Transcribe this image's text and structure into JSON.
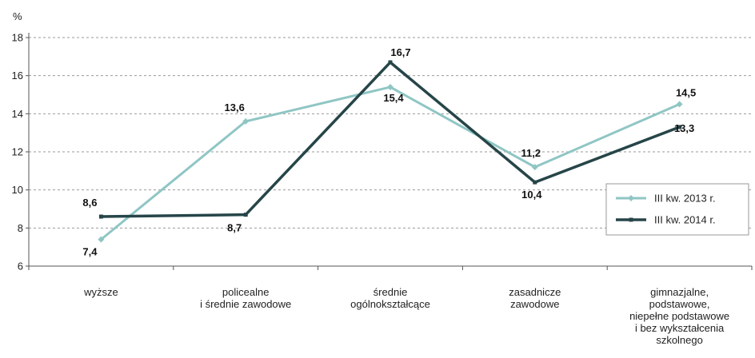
{
  "chart_data": {
    "type": "line",
    "ylabel": "%",
    "ylim": [
      6,
      18
    ],
    "yticks": [
      6,
      8,
      10,
      12,
      14,
      16,
      18
    ],
    "grid": true,
    "legend_position": "right",
    "categories": [
      [
        "wyższe"
      ],
      [
        "policealne",
        "i średnie zawodowe"
      ],
      [
        "średnie",
        "ogólnokształcące"
      ],
      [
        "zasadnicze",
        "zawodowe"
      ],
      [
        "gimnazjalne,",
        "podstawowe,",
        "niepełne podstawowe",
        "i bez wykształcenia",
        "szkolnego"
      ]
    ],
    "series": [
      {
        "name": "III kw. 2013 r.",
        "color": "#8fc6c4",
        "marker": "diamond",
        "values": [
          7.4,
          13.6,
          15.4,
          11.2,
          14.5
        ],
        "labels": [
          "7,4",
          "13,6",
          "15,4",
          "11,2",
          "14,5"
        ]
      },
      {
        "name": "III kw. 2014 r.",
        "color": "#264548",
        "marker": "square",
        "values": [
          8.6,
          8.7,
          16.7,
          10.4,
          13.3
        ],
        "labels": [
          "8,6",
          "8,7",
          "16,7",
          "10,4",
          "13,3"
        ]
      }
    ]
  }
}
